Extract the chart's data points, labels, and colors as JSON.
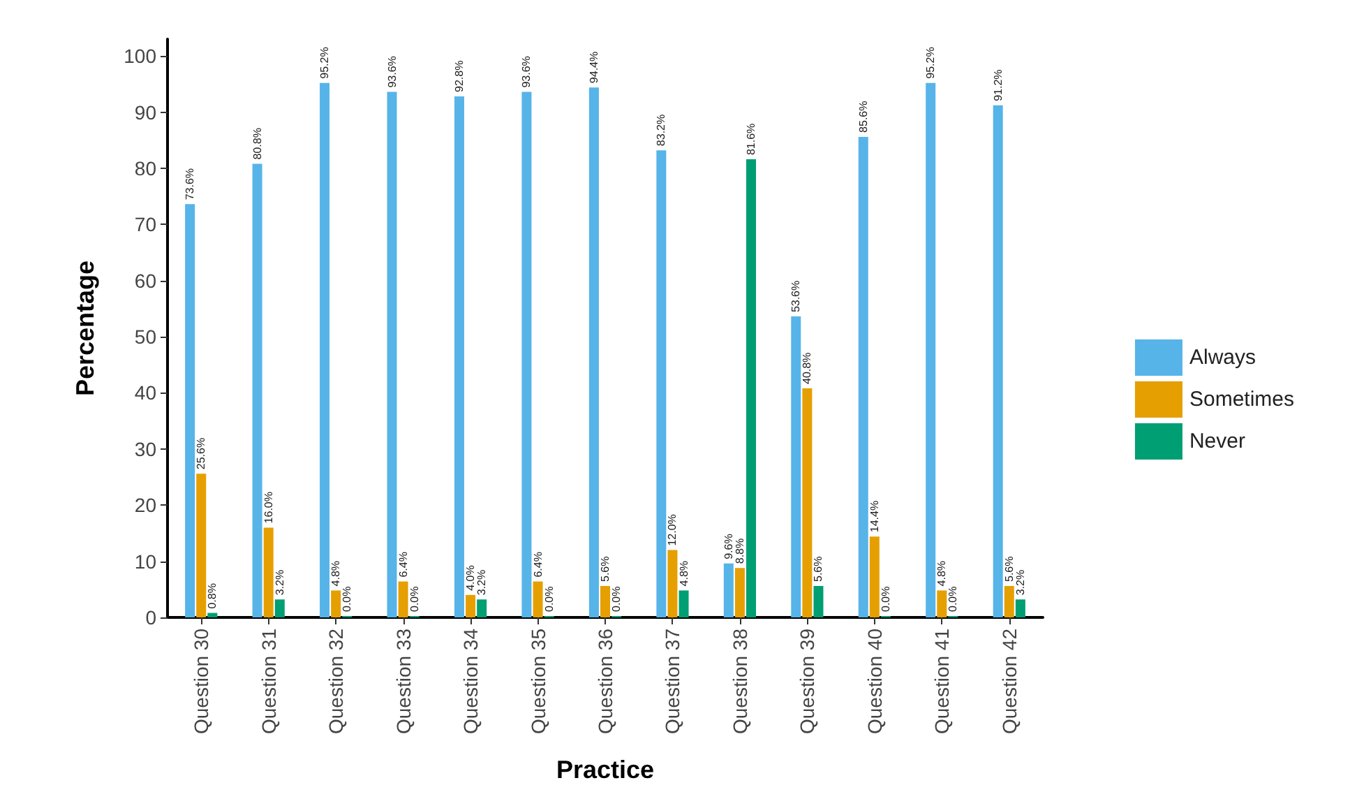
{
  "chart_data": {
    "type": "bar",
    "xlabel": "Practice",
    "ylabel": "Percentage",
    "categories": [
      "Question 30",
      "Question 31",
      "Question 32",
      "Question 33",
      "Question 34",
      "Question 35",
      "Question 36",
      "Question 37",
      "Question 38",
      "Question 39",
      "Question 40",
      "Question 41",
      "Question 42"
    ],
    "series": [
      {
        "name": "Always",
        "color": "#56b4e9",
        "values": [
          73.6,
          80.8,
          95.2,
          93.6,
          92.8,
          93.6,
          94.4,
          83.2,
          9.6,
          53.6,
          85.6,
          95.2,
          91.2
        ],
        "value_labels": [
          "73.6%",
          "80.8%",
          "95.2%",
          "93.6%",
          "92.8%",
          "93.6%",
          "94.4%",
          "83.2%",
          "9.6%",
          "53.6%",
          "85.6%",
          "95.2%",
          "91.2%"
        ]
      },
      {
        "name": "Sometimes",
        "color": "#e69f00",
        "values": [
          25.6,
          16.0,
          4.8,
          6.4,
          4.0,
          6.4,
          5.6,
          12.0,
          8.8,
          40.8,
          14.4,
          4.8,
          5.6
        ],
        "value_labels": [
          "25.6%",
          "16.0%",
          "4.8%",
          "6.4%",
          "4.0%",
          "6.4%",
          "5.6%",
          "12.0%",
          "8.8%",
          "40.8%",
          "14.4%",
          "4.8%",
          "5.6%"
        ]
      },
      {
        "name": "Never",
        "color": "#009e73",
        "values": [
          0.8,
          3.2,
          0.0,
          0.0,
          3.2,
          0.0,
          0.0,
          4.8,
          81.6,
          5.6,
          0.0,
          0.0,
          3.2
        ],
        "value_labels": [
          "0.8%",
          "3.2%",
          "0.0%",
          "0.0%",
          "3.2%",
          "0.0%",
          "0.0%",
          "4.8%",
          "81.6%",
          "5.6%",
          "0.0%",
          "0.0%",
          "3.2%"
        ]
      }
    ],
    "ylim": [
      0,
      103
    ],
    "yticks": [
      0,
      10,
      20,
      30,
      40,
      50,
      60,
      70,
      80,
      90,
      100
    ],
    "grid": false,
    "legend": "right"
  }
}
